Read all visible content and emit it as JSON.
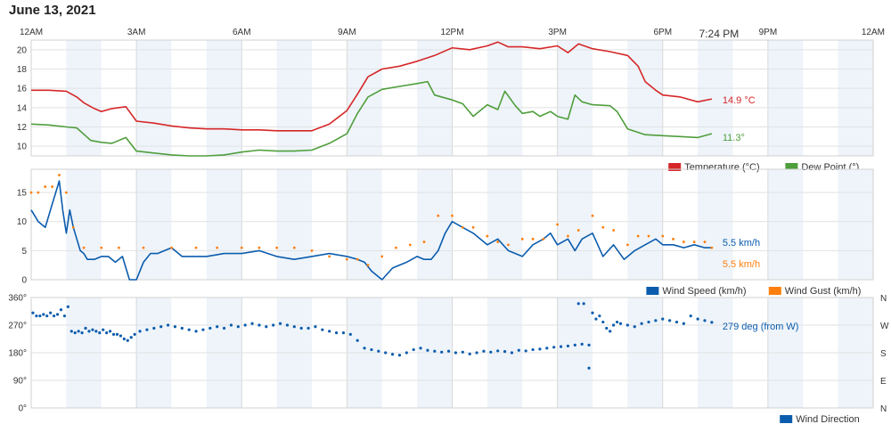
{
  "date_title": "June 13, 2021",
  "x_ticks": [
    "12AM",
    "3AM",
    "6AM",
    "9AM",
    "12PM",
    "3PM",
    "6PM",
    "9PM",
    "12AM"
  ],
  "now_label": "7:24 PM",
  "colors": {
    "temperature": "#d62728",
    "dewpoint": "#4f9e3c",
    "wind_speed": "#0b5cad",
    "wind_gust": "#ff7f0e",
    "direction": "#0b5cad"
  },
  "chart_data": [
    {
      "type": "line",
      "x_unit": "hour",
      "xlim": [
        0,
        24
      ],
      "ylim": [
        9,
        21
      ],
      "yticks": [
        10,
        12,
        14,
        16,
        18,
        20
      ],
      "series": [
        {
          "name": "Temperature (°C)",
          "color": "#d62728",
          "x": [
            0,
            0.5,
            1,
            1.3,
            1.5,
            1.8,
            2,
            2.3,
            2.7,
            3,
            3.5,
            4,
            4.5,
            5,
            5.5,
            6,
            6.5,
            7,
            7.5,
            8,
            8.5,
            9,
            9.3,
            9.6,
            10,
            10.5,
            11,
            11.5,
            12,
            12.5,
            13,
            13.3,
            13.6,
            14,
            14.5,
            15,
            15.3,
            15.6,
            16,
            16.5,
            17,
            17.3,
            17.5,
            17.8,
            18,
            18.5,
            19,
            19.4
          ],
          "y": [
            15.8,
            15.8,
            15.7,
            15.1,
            14.5,
            13.9,
            13.6,
            13.9,
            14.1,
            12.6,
            12.4,
            12.1,
            11.9,
            11.8,
            11.8,
            11.7,
            11.7,
            11.6,
            11.6,
            11.6,
            12.3,
            13.7,
            15.4,
            17.2,
            18.0,
            18.3,
            18.8,
            19.4,
            20.2,
            20.0,
            20.4,
            20.8,
            20.3,
            20.3,
            20.1,
            20.4,
            19.7,
            20.6,
            20.1,
            19.8,
            19.4,
            18.3,
            16.7,
            15.8,
            15.3,
            15.1,
            14.6,
            14.9
          ],
          "end_label": "14.9 °C"
        },
        {
          "name": "Dew Point (°)",
          "color": "#4f9e3c",
          "x": [
            0,
            0.5,
            1,
            1.3,
            1.7,
            2,
            2.3,
            2.7,
            3,
            3.5,
            4,
            4.5,
            5,
            5.5,
            6,
            6.5,
            7,
            7.5,
            8,
            8.5,
            9,
            9.3,
            9.6,
            10,
            10.5,
            11,
            11.3,
            11.5,
            12,
            12.3,
            12.6,
            13,
            13.3,
            13.5,
            13.8,
            14,
            14.3,
            14.5,
            14.8,
            15,
            15.3,
            15.5,
            15.7,
            16,
            16.5,
            16.7,
            17,
            17.5,
            18,
            18.5,
            19,
            19.4
          ],
          "y": [
            12.3,
            12.2,
            12.0,
            11.9,
            10.6,
            10.4,
            10.3,
            10.9,
            9.5,
            9.3,
            9.1,
            9.0,
            9.0,
            9.1,
            9.4,
            9.6,
            9.5,
            9.5,
            9.6,
            10.3,
            11.3,
            13.4,
            15.1,
            15.9,
            16.2,
            16.5,
            16.7,
            15.3,
            14.8,
            14.4,
            13.1,
            14.3,
            13.8,
            15.7,
            14.2,
            13.4,
            13.6,
            13.1,
            13.6,
            13.1,
            12.8,
            15.3,
            14.6,
            14.3,
            14.2,
            13.6,
            11.8,
            11.2,
            11.1,
            11.0,
            10.9,
            11.3
          ],
          "end_label": "11.3°"
        }
      ],
      "legend": [
        "Temperature (°C)",
        "Dew Point (°)"
      ],
      "legend_position": "bottom-right"
    },
    {
      "type": "line",
      "x_unit": "hour",
      "xlim": [
        0,
        24
      ],
      "ylim": [
        0,
        19
      ],
      "yticks": [
        0,
        5,
        10,
        15
      ],
      "series": [
        {
          "name": "Wind Speed (km/h)",
          "color": "#0b5cad",
          "x": [
            0,
            0.2,
            0.4,
            0.6,
            0.8,
            0.9,
            1.0,
            1.1,
            1.2,
            1.3,
            1.4,
            1.5,
            1.6,
            1.8,
            2.0,
            2.2,
            2.4,
            2.6,
            2.8,
            3.0,
            3.2,
            3.4,
            3.6,
            3.8,
            4.0,
            4.3,
            4.6,
            5,
            5.5,
            6,
            6.5,
            7,
            7.5,
            8,
            8.5,
            9,
            9.3,
            9.5,
            9.7,
            10,
            10.3,
            10.7,
            11,
            11.2,
            11.4,
            11.6,
            11.8,
            12,
            12.3,
            12.6,
            13,
            13.3,
            13.6,
            14,
            14.3,
            14.6,
            14.8,
            15,
            15.3,
            15.5,
            15.7,
            16,
            16.3,
            16.6,
            16.9,
            17.2,
            17.5,
            17.8,
            18,
            18.3,
            18.6,
            18.9,
            19.2,
            19.4
          ],
          "y": [
            12,
            10,
            9,
            13,
            17,
            12,
            8,
            12,
            9,
            7,
            5,
            4.5,
            3.5,
            3.5,
            4,
            4,
            3,
            4,
            0,
            0,
            3,
            4.5,
            4.5,
            5,
            5.5,
            4,
            4,
            4,
            4.5,
            4.5,
            5,
            4,
            3.5,
            4,
            4.5,
            4,
            3.5,
            3,
            1.5,
            0,
            2,
            3,
            4,
            3.5,
            3.5,
            5,
            8,
            10,
            9,
            8,
            6,
            7,
            5,
            4,
            6,
            7,
            8,
            6,
            7,
            5,
            7,
            8,
            4,
            6,
            3.5,
            5,
            6,
            7,
            6,
            6,
            5.5,
            6,
            5.5,
            5.5
          ],
          "end_label": "5.5 km/h"
        },
        {
          "name": "Wind Gust (km/h)",
          "color": "#ff7f0e",
          "x": [
            0,
            0.2,
            0.4,
            0.6,
            0.8,
            1.0,
            1.2,
            1.5,
            2.0,
            2.5,
            3.2,
            4.0,
            4.7,
            5.3,
            6,
            6.5,
            7,
            7.5,
            8,
            8.5,
            9,
            9.3,
            9.6,
            10,
            10.4,
            10.8,
            11.2,
            11.6,
            12,
            12.3,
            12.6,
            13,
            13.3,
            13.6,
            14,
            14.3,
            14.6,
            15,
            15.3,
            15.6,
            16,
            16.3,
            16.6,
            17,
            17.3,
            17.6,
            18,
            18.3,
            18.6,
            18.9,
            19.2,
            19.4
          ],
          "y": [
            15,
            15,
            16,
            16,
            18,
            15,
            9,
            5.5,
            5.5,
            5.5,
            5.5,
            5.5,
            5.5,
            5.5,
            5.5,
            5.5,
            5.5,
            5.5,
            5,
            4,
            3.5,
            3.5,
            2.5,
            4,
            5.5,
            6,
            6.5,
            11,
            11,
            9,
            9,
            7.5,
            6.5,
            6,
            7,
            7,
            7,
            9.5,
            7.5,
            8.5,
            11,
            9,
            8.5,
            6,
            7.5,
            7.5,
            7.5,
            7,
            6.5,
            6.5,
            6.5,
            5.5
          ],
          "end_label": "5.5 km/h"
        }
      ],
      "legend": [
        "Wind Speed (km/h)",
        "Wind Gust (km/h)"
      ],
      "legend_position": "bottom-right"
    },
    {
      "type": "scatter",
      "x_unit": "hour",
      "xlim": [
        0,
        24
      ],
      "ylim": [
        0,
        360
      ],
      "yticks": [
        "0°",
        "90°",
        "180°",
        "270°",
        "360°"
      ],
      "ytick_values": [
        0,
        90,
        180,
        270,
        360
      ],
      "right_ticks": [
        "N",
        "E",
        "S",
        "W",
        "N"
      ],
      "series": [
        {
          "name": "Wind Direction",
          "color": "#0b5cad",
          "x": [
            0.05,
            0.15,
            0.25,
            0.35,
            0.45,
            0.55,
            0.65,
            0.75,
            0.85,
            0.95,
            1.05,
            1.15,
            1.25,
            1.35,
            1.45,
            1.55,
            1.65,
            1.75,
            1.85,
            1.95,
            2.05,
            2.15,
            2.25,
            2.35,
            2.45,
            2.55,
            2.65,
            2.75,
            2.85,
            2.95,
            3.1,
            3.3,
            3.5,
            3.7,
            3.9,
            4.1,
            4.3,
            4.5,
            4.7,
            4.9,
            5.1,
            5.3,
            5.5,
            5.7,
            5.9,
            6.1,
            6.3,
            6.5,
            6.7,
            6.9,
            7.1,
            7.3,
            7.5,
            7.7,
            7.9,
            8.1,
            8.3,
            8.5,
            8.7,
            8.9,
            9.1,
            9.3,
            9.5,
            9.7,
            9.9,
            10.1,
            10.3,
            10.5,
            10.7,
            10.9,
            11.1,
            11.3,
            11.5,
            11.7,
            11.9,
            12.1,
            12.3,
            12.5,
            12.7,
            12.9,
            13.1,
            13.3,
            13.5,
            13.7,
            13.9,
            14.1,
            14.3,
            14.5,
            14.7,
            14.9,
            15.1,
            15.3,
            15.5,
            15.7,
            15.9,
            15.6,
            15.75,
            15.9,
            16.0,
            16.1,
            16.2,
            16.3,
            16.4,
            16.5,
            16.6,
            16.7,
            16.8,
            17.0,
            17.2,
            17.4,
            17.6,
            17.8,
            18.0,
            18.2,
            18.4,
            18.6,
            18.8,
            19.0,
            19.2,
            19.4
          ],
          "y": [
            310,
            300,
            300,
            305,
            300,
            310,
            300,
            305,
            320,
            300,
            330,
            250,
            245,
            250,
            245,
            260,
            250,
            255,
            250,
            245,
            255,
            245,
            250,
            240,
            240,
            235,
            225,
            220,
            230,
            240,
            250,
            255,
            260,
            265,
            270,
            265,
            260,
            255,
            250,
            255,
            260,
            265,
            260,
            270,
            265,
            270,
            275,
            270,
            265,
            270,
            275,
            270,
            265,
            260,
            260,
            265,
            255,
            250,
            245,
            245,
            240,
            220,
            195,
            190,
            185,
            180,
            175,
            172,
            180,
            190,
            195,
            188,
            185,
            182,
            185,
            180,
            182,
            176,
            180,
            185,
            182,
            186,
            184,
            180,
            188,
            186,
            190,
            192,
            195,
            198,
            200,
            202,
            205,
            208,
            205,
            340,
            340,
            130,
            310,
            290,
            300,
            280,
            260,
            250,
            270,
            280,
            275,
            270,
            265,
            275,
            280,
            285,
            290,
            285,
            280,
            275,
            300,
            290,
            285,
            279
          ],
          "end_label": "279 deg (from W)"
        }
      ],
      "legend": [
        "Wind Direction"
      ],
      "legend_position": "bottom-right"
    }
  ]
}
